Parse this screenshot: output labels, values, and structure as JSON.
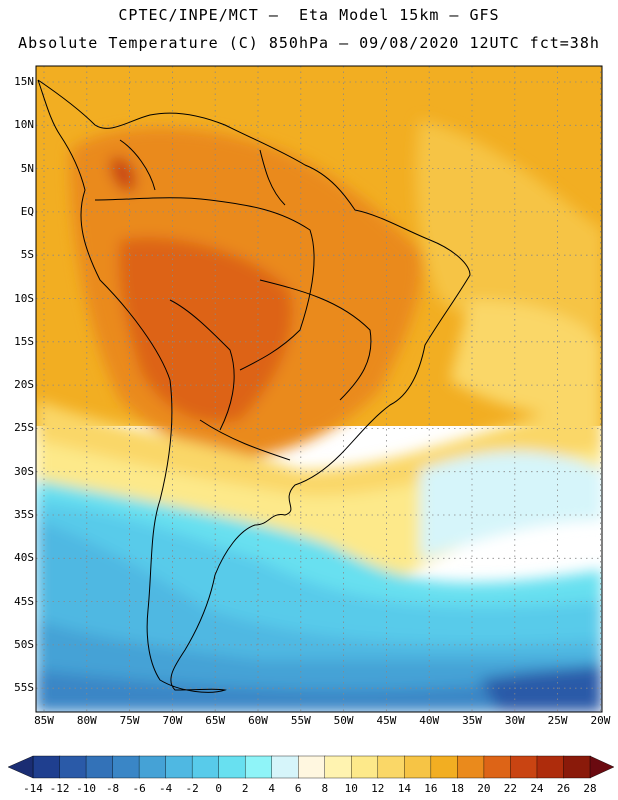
{
  "header": {
    "line1": "CPTEC/INPE/MCT –  Eta Model 15km – GFS",
    "line2": "Absolute Temperature (C) 850hPa – 09/08/2020 12UTC fct=38h"
  },
  "map": {
    "lat_labels": [
      "15N",
      "10N",
      "5N",
      "EQ",
      "5S",
      "10S",
      "15S",
      "20S",
      "25S",
      "30S",
      "35S",
      "40S",
      "45S",
      "50S",
      "55S"
    ],
    "lon_labels": [
      "85W",
      "80W",
      "75W",
      "70W",
      "65W",
      "60W",
      "55W",
      "50W",
      "45W",
      "40W",
      "35W",
      "30W",
      "25W",
      "20W"
    ]
  },
  "legend": {
    "labels": [
      "-14",
      "-12",
      "-10",
      "-8",
      "-6",
      "-4",
      "-2",
      "0",
      "2",
      "4",
      "6",
      "8",
      "10",
      "12",
      "14",
      "16",
      "18",
      "20",
      "22",
      "24",
      "26",
      "28"
    ],
    "colors": [
      "#1f3f8f",
      "#2a5aa8",
      "#3372b8",
      "#3a86c6",
      "#45a2d6",
      "#4fb8e2",
      "#58cbea",
      "#68e0f0",
      "#8ff4f8",
      "#d6f5fa",
      "#fff7e0",
      "#fff3b0",
      "#fde98a",
      "#fad767",
      "#f6c445",
      "#f2ae22",
      "#ea8a1c",
      "#dd6417",
      "#c94412",
      "#ae2c0c",
      "#8a1a0a"
    ],
    "end_left_color": "#1a2d73",
    "end_right_color": "#6a0a10"
  }
}
